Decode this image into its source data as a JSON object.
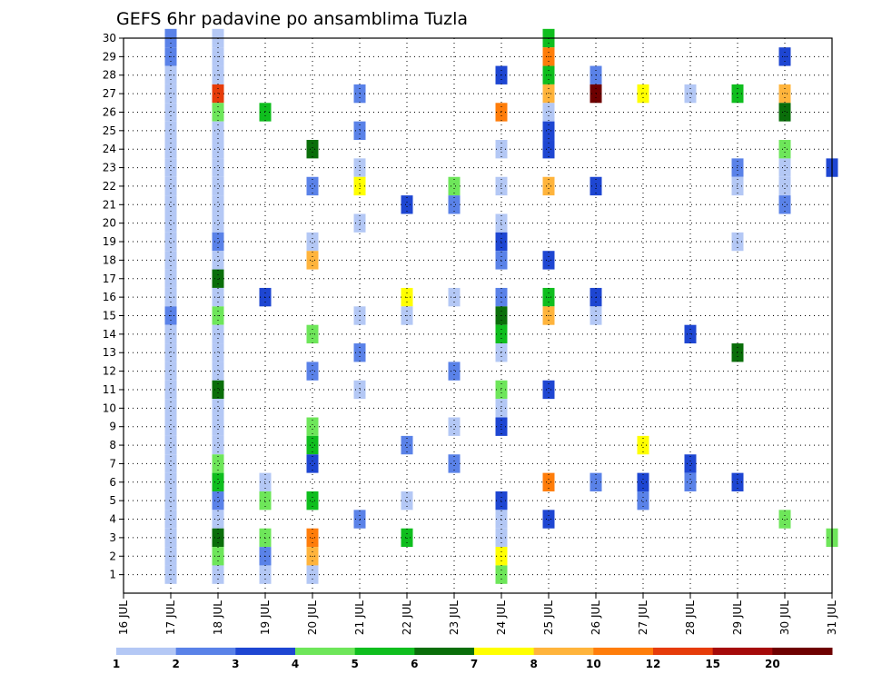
{
  "chart_data": {
    "type": "heatmap",
    "title": "GEFS 6hr padavine po ansamblima Tuzla",
    "x_tick_labels": [
      "16 JUL",
      "17 JUL",
      "18 JUL",
      "19 JUL",
      "20 JUL",
      "21 JUL",
      "22 JUL",
      "23 JUL",
      "24 JUL",
      "25 JUL",
      "26 JUL",
      "27 JUL",
      "28 JUL",
      "29 JUL",
      "30 JUL",
      "31 JUL"
    ],
    "y_tick_labels": [
      "1",
      "2",
      "3",
      "4",
      "5",
      "6",
      "7",
      "8",
      "9",
      "10",
      "11",
      "12",
      "13",
      "14",
      "15",
      "16",
      "17",
      "18",
      "19",
      "20",
      "21",
      "22",
      "23",
      "24",
      "25",
      "26",
      "27",
      "28",
      "29",
      "30"
    ],
    "x_range": [
      "16 JUL",
      "31 JUL"
    ],
    "y_range": [
      0,
      30
    ],
    "grid": true,
    "colorbar": {
      "labels": [
        "1",
        "2",
        "3",
        "4",
        "5",
        "6",
        "7",
        "8",
        "10",
        "12",
        "15",
        "20"
      ],
      "colors": [
        "#b4c8f5",
        "#5a82e8",
        "#1e46d2",
        "#6ee65a",
        "#0fbe1e",
        "#0a6e0a",
        "#ffff00",
        "#ffb43c",
        "#ff7d0a",
        "#e63c0a",
        "#a50a0a",
        "#6e0000"
      ]
    },
    "cells": [
      [
        17,
        30,
        2
      ],
      [
        17,
        29,
        2
      ],
      [
        17,
        28,
        1
      ],
      [
        17,
        27,
        1
      ],
      [
        17,
        26,
        1
      ],
      [
        17,
        25,
        1
      ],
      [
        17,
        24,
        1
      ],
      [
        17,
        23,
        1
      ],
      [
        17,
        22,
        1
      ],
      [
        17,
        21,
        1
      ],
      [
        17,
        20,
        1
      ],
      [
        17,
        19,
        1
      ],
      [
        17,
        18,
        1
      ],
      [
        17,
        17,
        1
      ],
      [
        17,
        16,
        1
      ],
      [
        17,
        15,
        2
      ],
      [
        17,
        14,
        1
      ],
      [
        17,
        13,
        1
      ],
      [
        17,
        12,
        1
      ],
      [
        17,
        11,
        1
      ],
      [
        17,
        10,
        1
      ],
      [
        17,
        9,
        1
      ],
      [
        17,
        8,
        1
      ],
      [
        17,
        7,
        1
      ],
      [
        17,
        6,
        1
      ],
      [
        17,
        5,
        1
      ],
      [
        17,
        4,
        1
      ],
      [
        17,
        3,
        1
      ],
      [
        17,
        2,
        1
      ],
      [
        17,
        1,
        1
      ],
      [
        18,
        30,
        1
      ],
      [
        18,
        29,
        1
      ],
      [
        18,
        28,
        1
      ],
      [
        18,
        27,
        10
      ],
      [
        18,
        26,
        4
      ],
      [
        18,
        25,
        1
      ],
      [
        18,
        24,
        1
      ],
      [
        18,
        23,
        1
      ],
      [
        18,
        22,
        1
      ],
      [
        18,
        21,
        1
      ],
      [
        18,
        20,
        1
      ],
      [
        18,
        19,
        2
      ],
      [
        18,
        18,
        1
      ],
      [
        18,
        17,
        6
      ],
      [
        18,
        16,
        1
      ],
      [
        18,
        15,
        4
      ],
      [
        18,
        14,
        1
      ],
      [
        18,
        13,
        1
      ],
      [
        18,
        12,
        1
      ],
      [
        18,
        11,
        6
      ],
      [
        18,
        10,
        1
      ],
      [
        18,
        9,
        1
      ],
      [
        18,
        8,
        1
      ],
      [
        18,
        7,
        4
      ],
      [
        18,
        6,
        5
      ],
      [
        18,
        5,
        2
      ],
      [
        18,
        4,
        1
      ],
      [
        18,
        3,
        6
      ],
      [
        18,
        2,
        4
      ],
      [
        18,
        1,
        1
      ],
      [
        19,
        26,
        5
      ],
      [
        19,
        16,
        3
      ],
      [
        19,
        6,
        1
      ],
      [
        19,
        5,
        4
      ],
      [
        19,
        3,
        4
      ],
      [
        19,
        2,
        2
      ],
      [
        19,
        1,
        1
      ],
      [
        20,
        24,
        6
      ],
      [
        20,
        22,
        2
      ],
      [
        20,
        19,
        1
      ],
      [
        20,
        18,
        8
      ],
      [
        20,
        14,
        4
      ],
      [
        20,
        12,
        2
      ],
      [
        20,
        9,
        4
      ],
      [
        20,
        8,
        5
      ],
      [
        20,
        7,
        3
      ],
      [
        20,
        5,
        5
      ],
      [
        20,
        3,
        9
      ],
      [
        20,
        2,
        8
      ],
      [
        20,
        1,
        1
      ],
      [
        21,
        27,
        2
      ],
      [
        21,
        25,
        2
      ],
      [
        21,
        23,
        1
      ],
      [
        21,
        22,
        7
      ],
      [
        21,
        20,
        1
      ],
      [
        21,
        15,
        1
      ],
      [
        21,
        13,
        2
      ],
      [
        21,
        11,
        1
      ],
      [
        21,
        4,
        2
      ],
      [
        22,
        21,
        3
      ],
      [
        22,
        16,
        7
      ],
      [
        22,
        15,
        1
      ],
      [
        22,
        8,
        2
      ],
      [
        22,
        5,
        1
      ],
      [
        22,
        3,
        5
      ],
      [
        23,
        22,
        4
      ],
      [
        23,
        21,
        2
      ],
      [
        23,
        16,
        1
      ],
      [
        23,
        12,
        2
      ],
      [
        23,
        9,
        1
      ],
      [
        23,
        7,
        2
      ],
      [
        24,
        28,
        3
      ],
      [
        24,
        26,
        9
      ],
      [
        24,
        24,
        1
      ],
      [
        24,
        22,
        1
      ],
      [
        24,
        20,
        1
      ],
      [
        24,
        19,
        3
      ],
      [
        24,
        18,
        2
      ],
      [
        24,
        16,
        2
      ],
      [
        24,
        15,
        6
      ],
      [
        24,
        14,
        5
      ],
      [
        24,
        13,
        1
      ],
      [
        24,
        11,
        4
      ],
      [
        24,
        10,
        1
      ],
      [
        24,
        9,
        3
      ],
      [
        24,
        5,
        3
      ],
      [
        24,
        4,
        1
      ],
      [
        24,
        3,
        1
      ],
      [
        24,
        2,
        7
      ],
      [
        24,
        1,
        4
      ],
      [
        25,
        30,
        5
      ],
      [
        25,
        29,
        9
      ],
      [
        25,
        28,
        5
      ],
      [
        25,
        27,
        8
      ],
      [
        25,
        26,
        1
      ],
      [
        25,
        25,
        3
      ],
      [
        25,
        24,
        3
      ],
      [
        25,
        22,
        8
      ],
      [
        25,
        18,
        3
      ],
      [
        25,
        16,
        5
      ],
      [
        25,
        15,
        8
      ],
      [
        25,
        11,
        3
      ],
      [
        25,
        6,
        9
      ],
      [
        25,
        4,
        3
      ],
      [
        26,
        28,
        2
      ],
      [
        26,
        27,
        12
      ],
      [
        26,
        22,
        3
      ],
      [
        26,
        16,
        3
      ],
      [
        26,
        15,
        1
      ],
      [
        26,
        6,
        2
      ],
      [
        27,
        27,
        7
      ],
      [
        27,
        8,
        7
      ],
      [
        27,
        6,
        3
      ],
      [
        27,
        5,
        2
      ],
      [
        28,
        27,
        1
      ],
      [
        28,
        14,
        3
      ],
      [
        28,
        7,
        3
      ],
      [
        28,
        6,
        2
      ],
      [
        29,
        27,
        5
      ],
      [
        29,
        23,
        2
      ],
      [
        29,
        22,
        1
      ],
      [
        29,
        19,
        1
      ],
      [
        29,
        13,
        6
      ],
      [
        29,
        6,
        3
      ],
      [
        30,
        29,
        3
      ],
      [
        30,
        27,
        8
      ],
      [
        30,
        26,
        6
      ],
      [
        30,
        23,
        1
      ],
      [
        30,
        22,
        1
      ],
      [
        30,
        21,
        2
      ],
      [
        30,
        24,
        4
      ],
      [
        30,
        4,
        4
      ],
      [
        31,
        23,
        3
      ],
      [
        31,
        3,
        4
      ]
    ]
  }
}
